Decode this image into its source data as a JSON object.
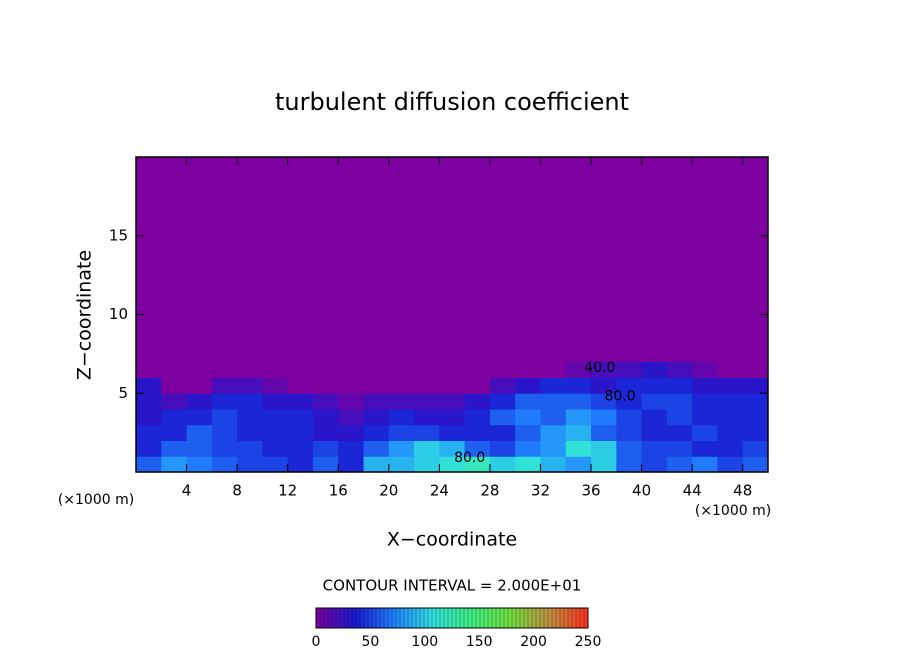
{
  "chart_data": {
    "type": "contour",
    "title": "turbulent diffusion coefficient",
    "x_label": "X−coordinate",
    "y_label": "Z−coordinate",
    "x_unit": "(×1000 m)",
    "y_unit": "(×1000 m)",
    "xlim": [
      0,
      50
    ],
    "ylim": [
      0,
      20
    ],
    "xticks": [
      4,
      8,
      12,
      16,
      20,
      24,
      28,
      32,
      36,
      40,
      44,
      48
    ],
    "yticks": [
      5,
      10,
      15
    ],
    "x": [
      1,
      3,
      5,
      7,
      9,
      11,
      13,
      15,
      17,
      19,
      21,
      23,
      25,
      27,
      29,
      31,
      33,
      35,
      37,
      39,
      41,
      43,
      45,
      47,
      49
    ],
    "y": [
      0.5,
      1.5,
      2.5,
      3.5,
      4.5,
      5.5,
      6.5
    ],
    "z": [
      [
        60,
        80,
        70,
        60,
        50,
        50,
        40,
        60,
        40,
        90,
        90,
        100,
        110,
        120,
        100,
        110,
        90,
        80,
        100,
        60,
        50,
        60,
        70,
        50,
        60
      ],
      [
        40,
        60,
        60,
        50,
        50,
        40,
        40,
        50,
        40,
        60,
        80,
        100,
        90,
        60,
        50,
        70,
        80,
        110,
        100,
        60,
        50,
        50,
        40,
        40,
        50
      ],
      [
        40,
        40,
        60,
        50,
        40,
        40,
        40,
        30,
        30,
        40,
        50,
        50,
        40,
        40,
        40,
        60,
        80,
        90,
        60,
        50,
        40,
        40,
        50,
        40,
        40
      ],
      [
        30,
        40,
        40,
        50,
        40,
        40,
        40,
        30,
        20,
        30,
        40,
        30,
        30,
        40,
        60,
        70,
        60,
        80,
        70,
        50,
        40,
        50,
        40,
        40,
        40
      ],
      [
        30,
        20,
        30,
        40,
        40,
        30,
        30,
        20,
        10,
        20,
        20,
        20,
        20,
        30,
        40,
        60,
        60,
        60,
        50,
        40,
        50,
        50,
        40,
        40,
        40
      ],
      [
        30,
        0,
        0,
        20,
        20,
        10,
        0,
        0,
        0,
        0,
        0,
        0,
        0,
        0,
        20,
        30,
        40,
        40,
        30,
        40,
        40,
        40,
        30,
        30,
        30
      ],
      [
        0,
        0,
        0,
        0,
        0,
        0,
        0,
        0,
        0,
        0,
        0,
        0,
        0,
        0,
        0,
        0,
        0,
        10,
        20,
        20,
        30,
        20,
        10,
        0,
        0
      ]
    ],
    "contour_labels": [
      {
        "x": 36.7,
        "y": 6.6,
        "value": 40,
        "label": "40.0"
      },
      {
        "x": 38.3,
        "y": 4.8,
        "value": 80,
        "label": "80.0"
      },
      {
        "x": 26.4,
        "y": 0.9,
        "value": 80,
        "label": "80.0"
      }
    ],
    "contour_interval_label": "CONTOUR INTERVAL = 2.000E+01",
    "clim": [
      0,
      250
    ],
    "colorbar_ticks": [
      0,
      50,
      100,
      150,
      200,
      250
    ],
    "colormap": [
      "#7f00a0",
      "#1a1ad0",
      "#2080ff",
      "#30e0e0",
      "#40f080",
      "#70e040",
      "#c09040",
      "#ff3020"
    ]
  }
}
